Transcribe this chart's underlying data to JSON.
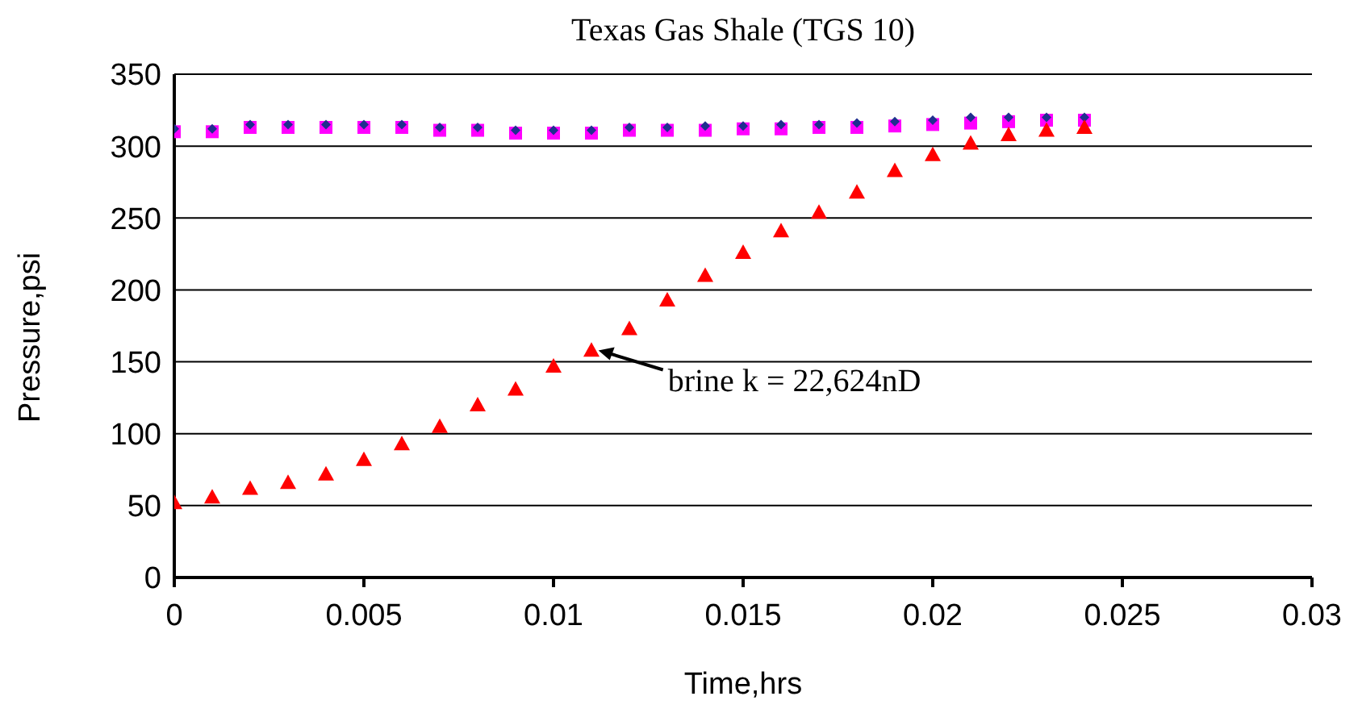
{
  "chart_data": {
    "type": "scatter",
    "title": "Texas Gas Shale (TGS 10)",
    "xlabel": "Time,hrs",
    "ylabel": "Pressure,psi",
    "xlim": [
      0,
      0.03
    ],
    "xticks": [
      0,
      0.005,
      0.01,
      0.015,
      0.02,
      0.025,
      0.03
    ],
    "ylim": [
      0,
      350
    ],
    "yticks": [
      0,
      50,
      100,
      150,
      200,
      250,
      300,
      350
    ],
    "grid": "y",
    "series": [
      {
        "color": "#ff00ff",
        "marker": "square",
        "x": [
          0,
          0.001,
          0.002,
          0.003,
          0.004,
          0.005,
          0.006,
          0.007,
          0.008,
          0.009,
          0.01,
          0.011,
          0.012,
          0.013,
          0.014,
          0.015,
          0.016,
          0.017,
          0.018,
          0.019,
          0.02,
          0.021,
          0.022,
          0.023,
          0.024
        ],
        "values": [
          310,
          310,
          313,
          313,
          313,
          313,
          313,
          311,
          311,
          309,
          309,
          309,
          311,
          311,
          311,
          312,
          312,
          313,
          313,
          314,
          315,
          316,
          317,
          318,
          318
        ]
      },
      {
        "color": "#1f2f8f",
        "marker": "diamond",
        "x": [
          0,
          0.001,
          0.002,
          0.003,
          0.004,
          0.005,
          0.006,
          0.007,
          0.008,
          0.009,
          0.01,
          0.011,
          0.012,
          0.013,
          0.014,
          0.015,
          0.016,
          0.017,
          0.018,
          0.019,
          0.02,
          0.021,
          0.022,
          0.023,
          0.024
        ],
        "values": [
          312,
          312,
          315,
          315,
          315,
          315,
          315,
          313,
          313,
          311,
          311,
          311,
          313,
          313,
          314,
          314,
          315,
          315,
          316,
          317,
          318,
          320,
          320,
          320,
          320
        ]
      },
      {
        "color": "#ff0000",
        "marker": "triangle",
        "x": [
          0,
          0.001,
          0.002,
          0.003,
          0.004,
          0.005,
          0.006,
          0.007,
          0.008,
          0.009,
          0.01,
          0.011,
          0.012,
          0.013,
          0.014,
          0.015,
          0.016,
          0.017,
          0.018,
          0.019,
          0.02,
          0.021,
          0.022,
          0.023,
          0.024
        ],
        "values": [
          52,
          56,
          62,
          66,
          72,
          82,
          93,
          105,
          120,
          131,
          147,
          158,
          173,
          193,
          210,
          226,
          241,
          254,
          268,
          283,
          294,
          302,
          308,
          311,
          313
        ]
      }
    ],
    "annotations": [
      {
        "text": "brine k = 22,624nD",
        "x": 0.0111,
        "y": 159
      }
    ]
  }
}
